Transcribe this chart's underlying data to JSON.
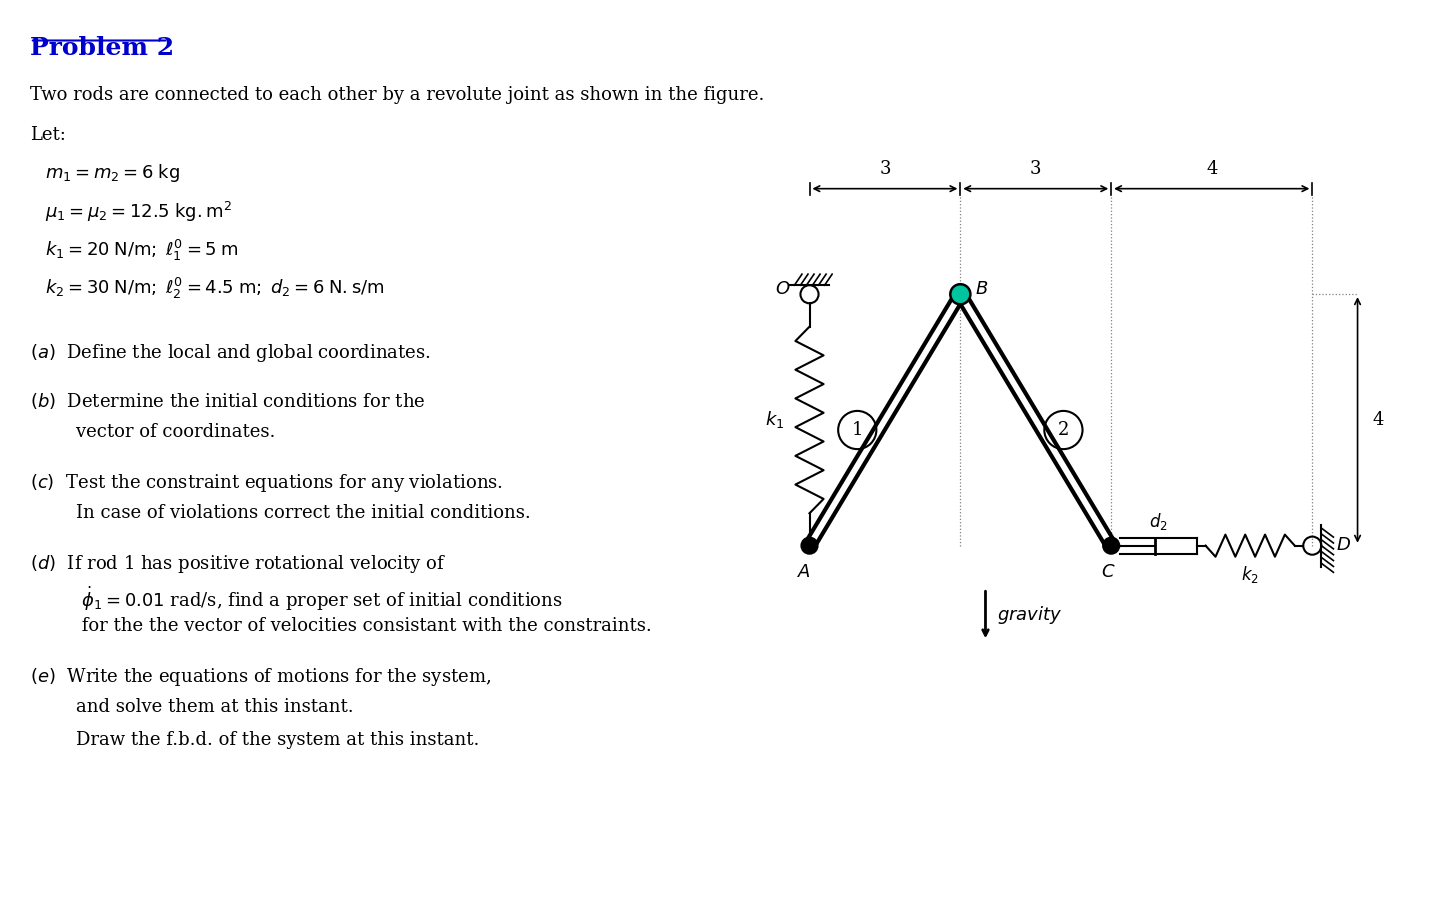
{
  "title": "Problem 2",
  "title_color": "#0000CC",
  "bg_color": "#ffffff",
  "text_color": "#000000",
  "problem_text": "Two rods are connected to each other by a revolute joint as shown in the figure.",
  "let_text": "Let:",
  "dim_3a": "3",
  "dim_3b": "3",
  "dim_4h": "4",
  "dim_4v": "4"
}
